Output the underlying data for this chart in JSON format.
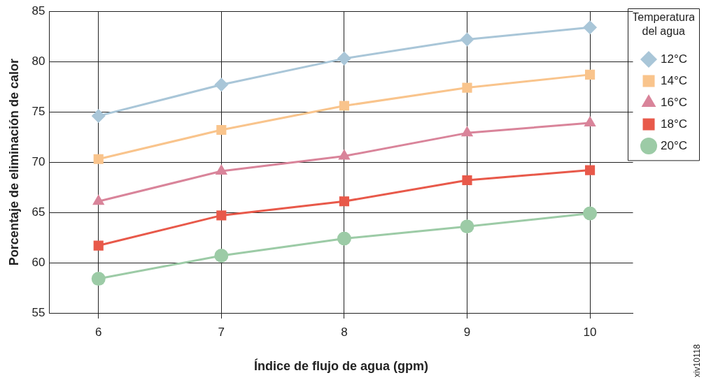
{
  "chart_data": {
    "type": "line",
    "xlabel": "Índice de flujo de agua (gpm)",
    "ylabel": "Porcentaje de eliminación de calor",
    "legend_title": "Temperatura del agua",
    "legend": "right",
    "grid": true,
    "x": [
      6,
      7,
      8,
      9,
      10
    ],
    "xlim": [
      5.6,
      10.35
    ],
    "xticks": [
      6,
      7,
      8,
      9,
      10
    ],
    "ylim": [
      55,
      85
    ],
    "yticks": [
      55,
      60,
      65,
      70,
      75,
      80,
      85
    ],
    "series": [
      {
        "name": "12°C",
        "color": "#a9c6d8",
        "marker": "diamond",
        "values": [
          74.6,
          77.7,
          80.3,
          82.2,
          83.4
        ]
      },
      {
        "name": "14°C",
        "color": "#f9c48c",
        "marker": "square",
        "values": [
          70.3,
          73.2,
          75.6,
          77.4,
          78.7
        ]
      },
      {
        "name": "16°C",
        "color": "#d9849a",
        "marker": "triangle",
        "values": [
          66.1,
          69.1,
          70.6,
          72.9,
          73.9
        ]
      },
      {
        "name": "18°C",
        "color": "#e8594a",
        "marker": "square",
        "values": [
          61.7,
          64.7,
          66.1,
          68.2,
          69.2
        ]
      },
      {
        "name": "20°C",
        "color": "#9ccba6",
        "marker": "circle",
        "values": [
          58.4,
          60.7,
          62.4,
          63.6,
          64.9
        ]
      }
    ],
    "annotations": [
      "xiv10118"
    ]
  }
}
